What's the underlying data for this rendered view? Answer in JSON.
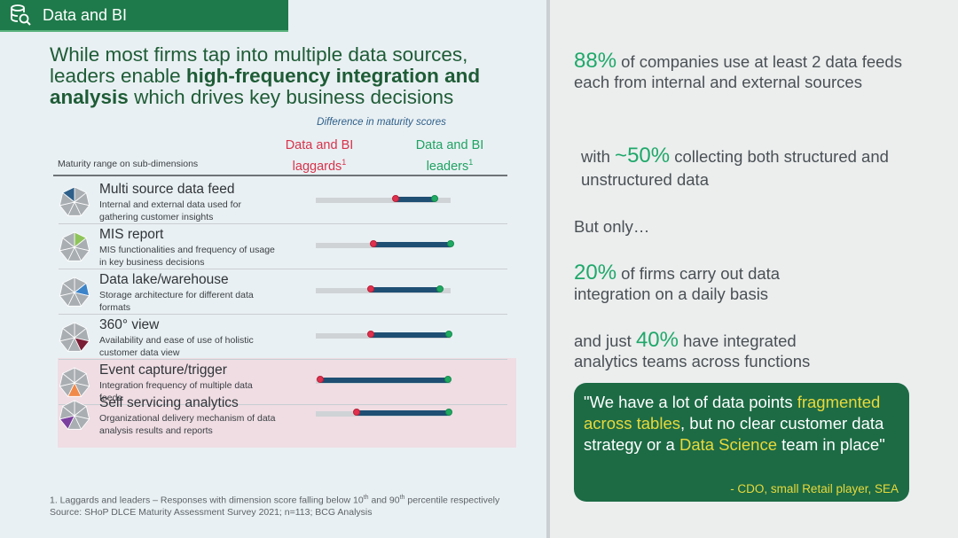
{
  "section": {
    "title": "Data and BI"
  },
  "headline": {
    "part1": "While most firms tap into multiple data sources, leaders enable ",
    "bold1": "high-frequency integration and analysis",
    "part2": " which drives key business decisions"
  },
  "chart_header": {
    "difference_label": "Difference in maturity scores",
    "laggards": "Data and BI laggards",
    "leaders": "Data and BI leaders",
    "footnote_mark": "1",
    "maturity_range_label": "Maturity range on sub-dimensions"
  },
  "chart_data": {
    "type": "range",
    "series": [
      {
        "name": "Data and BI laggards"
      },
      {
        "name": "Data and BI leaders"
      }
    ],
    "categories": [
      "Multi source data feed",
      "MIS report",
      "Data lake/warehouse",
      "360° view",
      "Event capture/trigger",
      "Self servicing analytics"
    ],
    "track": [
      [
        0.0,
        1.0
      ],
      [
        0.0,
        1.0
      ],
      [
        0.0,
        1.0
      ],
      [
        0.0,
        1.0
      ],
      [
        0.0,
        1.0
      ],
      [
        0.0,
        1.0
      ]
    ],
    "laggards": [
      0.59,
      0.43,
      0.41,
      0.41,
      0.03,
      0.3
    ],
    "leaders": [
      0.88,
      1.0,
      0.92,
      0.99,
      0.98,
      0.99
    ]
  },
  "rows": [
    {
      "title": "Multi source data feed",
      "desc": "Internal and external data used for gathering customer insights",
      "icon": "heptagon-icon-top-segment",
      "accent": "#2d5f8a",
      "highlight": false
    },
    {
      "title": "MIS report",
      "desc": "MIS functionalities and frequency of usage in key business decisions",
      "icon": "heptagon-icon-upper-right-segment",
      "accent": "#8fc45a",
      "highlight": false
    },
    {
      "title": "Data lake/warehouse",
      "desc": "Storage architecture for different data formats",
      "icon": "heptagon-icon-right-segment",
      "accent": "#3b84c9",
      "highlight": false
    },
    {
      "title": "360° view",
      "desc": "Availability and ease of use of holistic customer data view",
      "icon": "heptagon-icon-lower-right-segment",
      "accent": "#7a1d35",
      "highlight": false
    },
    {
      "title": "Event capture/trigger",
      "desc": "Integration frequency of multiple data feeds",
      "icon": "heptagon-icon-lower-left-segment",
      "accent": "#f08a4b",
      "highlight": true
    },
    {
      "title": "Self servicing analytics",
      "desc": "Organizational delivery mechanism of data analysis results and reports",
      "icon": "heptagon-icon-left-segment",
      "accent": "#7b3fa0",
      "highlight": true
    }
  ],
  "footnote": {
    "line1_a": "1. Laggards and leaders – Responses with dimension score falling below 10",
    "line1_sup1": "th",
    "line1_b": " and 90",
    "line1_sup2": "th",
    "line1_c": " percentile respectively",
    "line2": "Source: SHoP DLCE Maturity Assessment Survey 2021; n=113; BCG Analysis"
  },
  "stats": {
    "s1_big": "88%",
    "s1_text": " of companies use at least 2 data feeds each from internal and external sources",
    "s2_pre": "with ",
    "s2_big": "~50%",
    "s2_text": " collecting both structured and unstructured data",
    "s3": "But only…",
    "s4_big": "20%",
    "s4_text": " of firms carry out data integration on a daily basis",
    "s5_pre": "and just ",
    "s5_big": "40%",
    "s5_text": " have integrated analytics teams across functions"
  },
  "quote": {
    "q1": "\"We have a lot of data points ",
    "q_hl1": "fragmented across tables",
    "q2": ", but no clear customer data strategy or a ",
    "q_hl2": "Data Science",
    "q3": " team in place\"",
    "attribution": "- CDO, small Retail player, SEA"
  },
  "colors": {
    "brand_green": "#1e7a4a",
    "laggard_red": "#e0304e",
    "leader_green": "#1faa62",
    "bar_navy": "#1f4f73",
    "stat_green": "#1fa86a",
    "quote_yellow": "#e8d93a"
  }
}
